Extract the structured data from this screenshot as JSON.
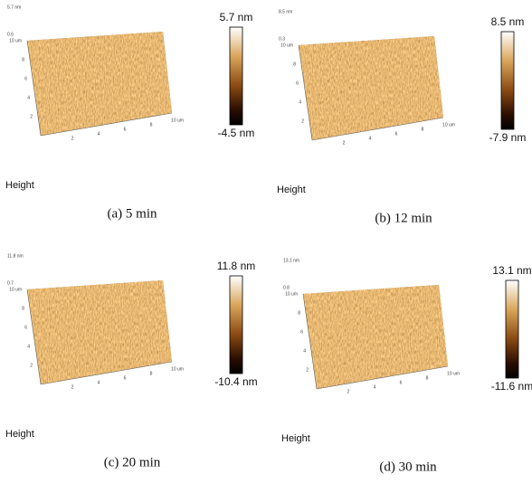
{
  "panels": [
    {
      "caption": "(a) 5 min",
      "z_label": "5.7 nm",
      "z_tick": "0.6",
      "height_label": "Height",
      "colorbar": {
        "max": "5.7 nm",
        "min": "-4.5 nm"
      },
      "x_ticks": [
        "2",
        "4",
        "6",
        "8",
        "10 um"
      ],
      "y_ticks": [
        "2",
        "4",
        "6",
        "8",
        "10 um"
      ]
    },
    {
      "caption": "(b) 12 min",
      "z_label": "8.5 nm",
      "z_tick": "0.3",
      "height_label": "Height",
      "colorbar": {
        "max": "8.5 nm",
        "min": "-7.9 nm"
      },
      "x_ticks": [
        "2",
        "4",
        "6",
        "8",
        "10 um"
      ],
      "y_ticks": [
        "2",
        "4",
        "6",
        "8",
        "10 um"
      ]
    },
    {
      "caption": "(c) 20 min",
      "z_label": "11.8 nm",
      "z_tick": "0.7",
      "height_label": "Height",
      "colorbar": {
        "max": "11.8 nm",
        "min": "-10.4 nm"
      },
      "x_ticks": [
        "2",
        "4",
        "6",
        "8",
        "10 um"
      ],
      "y_ticks": [
        "2",
        "4",
        "6",
        "8",
        "10 um"
      ]
    },
    {
      "caption": "(d) 30 min",
      "z_label": "13.1 nm",
      "z_tick": "0.8",
      "height_label": "Height",
      "colorbar": {
        "max": "13.1 nm",
        "min": "-11.6 nm"
      },
      "x_ticks": [
        "2",
        "4",
        "6",
        "8",
        "10 um"
      ],
      "y_ticks": [
        "2",
        "4",
        "6",
        "8",
        "10 um"
      ]
    }
  ]
}
